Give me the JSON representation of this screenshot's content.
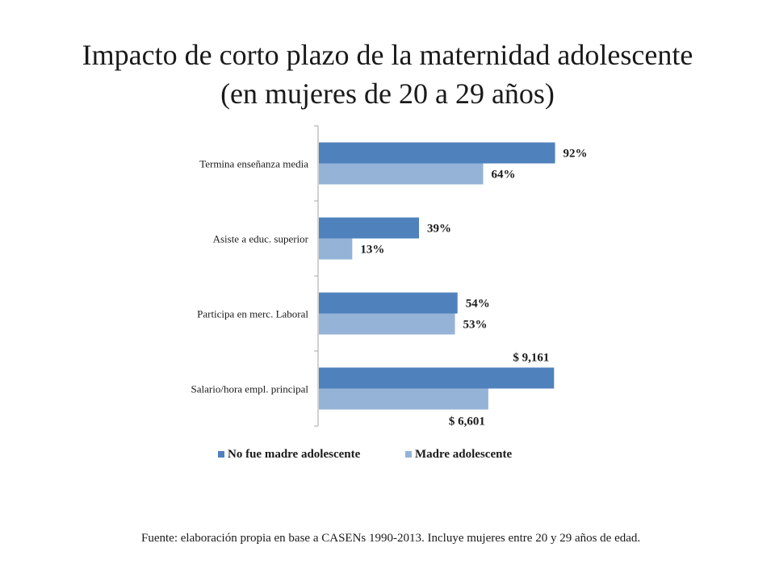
{
  "slide": {
    "title_line1": "Impacto de corto plazo de la maternidad adolescente",
    "title_line2": "(en mujeres de 20 a 29 años)",
    "source": "Fuente: elaboración propia en base a CASENs 1990-2013. Incluye mujeres entre 20 y 29 años de edad."
  },
  "colors": {
    "series1": "#4F81BD",
    "series2": "#95B3D7",
    "axis": "#A6A6A6",
    "text": "#1a1a1a"
  },
  "chart_data": {
    "type": "bar",
    "orientation": "horizontal",
    "title": "",
    "xlabel": "",
    "ylabel": "",
    "gridlines": false,
    "legend_position": "bottom",
    "categories": [
      "Termina enseñanza media",
      "Asiste a educ. superior",
      "Participa en merc. Laboral",
      "Salario/hora empl. principal"
    ],
    "series": [
      {
        "name": "No fue madre adolescente",
        "values": [
          0.92,
          0.39,
          0.54,
          9161
        ],
        "labels": [
          "92%",
          "39%",
          "54%",
          "$ 9,161"
        ]
      },
      {
        "name": "Madre adolescente",
        "values": [
          0.64,
          0.13,
          0.53,
          6601
        ],
        "labels": [
          "64%",
          "13%",
          "53%",
          "$ 6,601"
        ]
      }
    ],
    "category_scale_max": [
      1.0,
      1.0,
      1.0,
      10000
    ]
  }
}
